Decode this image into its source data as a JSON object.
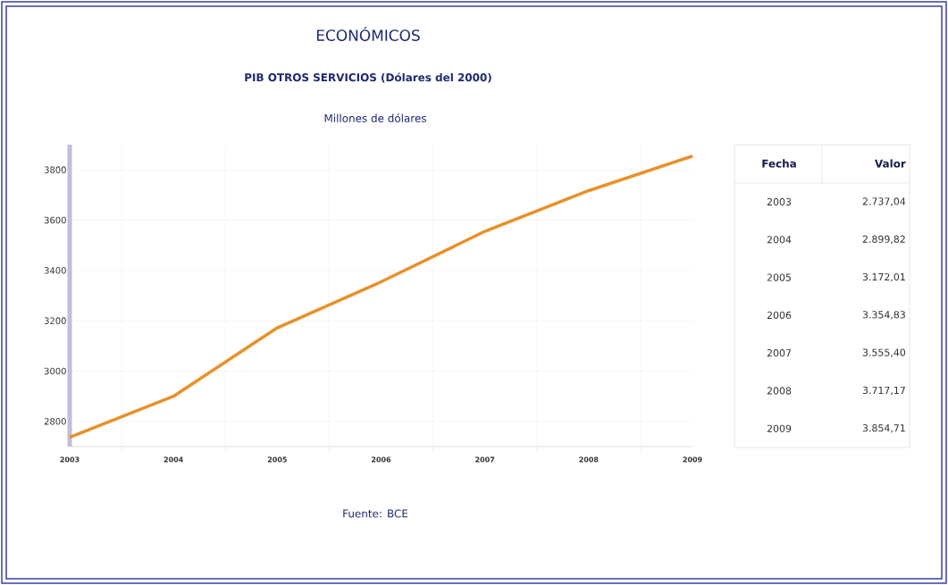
{
  "chart_data": {
    "type": "line",
    "title": "ECONÓMICOS",
    "subtitle": "PIB OTROS SERVICIOS (Dólares del 2000)",
    "ylabel": "Millones de dólares",
    "x": [
      2003,
      2004,
      2005,
      2006,
      2007,
      2008,
      2009
    ],
    "series": [
      {
        "color": "#e8912a",
        "values": [
          2737.04,
          2899.82,
          3172.01,
          3354.83,
          3555.4,
          3717.17,
          3854.71
        ]
      }
    ],
    "xlim": [
      2003,
      2009
    ],
    "xticks": [
      2003,
      2004,
      2005,
      2006,
      2007,
      2008,
      2009
    ],
    "ylim": [
      2700,
      3900
    ],
    "yticks": [
      2800,
      3000,
      3200,
      3400,
      3600,
      3800
    ],
    "grid": true,
    "marker": "none",
    "line_style": "solid",
    "annotations": [
      "Fecha",
      "Valor",
      "2003",
      "2.737,04",
      "2004",
      "2.899,82",
      "2005",
      "3.172,01",
      "2006",
      "3.354,83",
      "2007",
      "3.555,40",
      "2008",
      "3.717,17",
      "2009",
      "3.854,71",
      "Fuente:   BCE"
    ]
  }
}
